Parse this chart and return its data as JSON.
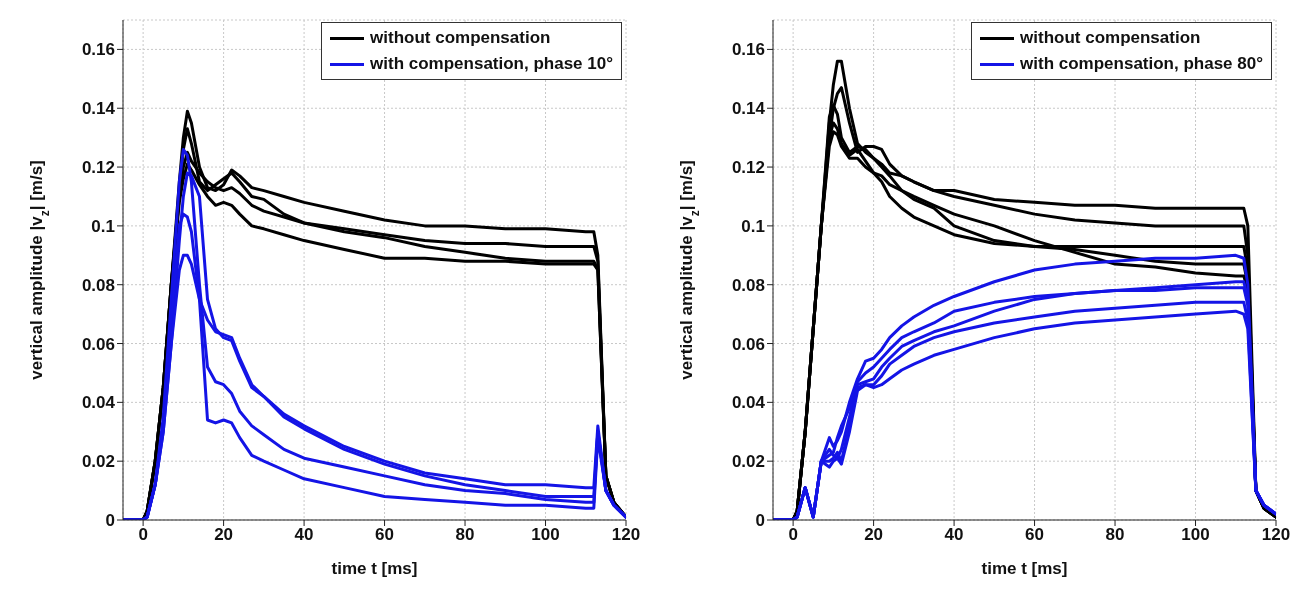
{
  "chart_data": [
    {
      "type": "line",
      "xlabel": "time t [ms]",
      "ylabel": "vertical amplitude |v$_{z}$| [m/s]",
      "xlim": [
        -5,
        120
      ],
      "xticks": [
        0,
        20,
        40,
        60,
        80,
        100,
        120
      ],
      "ylim": [
        0,
        0.17
      ],
      "yticks": [
        0,
        0.02,
        0.04,
        0.06,
        0.08,
        0.1,
        0.12,
        0.14,
        0.16
      ],
      "grid": true,
      "legend": "top right",
      "line_style": "solid",
      "marker": "none",
      "x": [
        -5,
        0,
        1,
        3,
        5,
        7,
        9,
        10,
        11,
        12,
        14,
        16,
        18,
        20,
        22,
        24,
        27,
        30,
        35,
        40,
        50,
        60,
        70,
        80,
        90,
        100,
        110,
        112,
        113,
        115,
        117,
        120
      ],
      "series": [
        {
          "name": "without compensation",
          "color": "#000000",
          "values": [
            0,
            0,
            0.003,
            0.02,
            0.045,
            0.08,
            0.115,
            0.13,
            0.139,
            0.135,
            0.12,
            0.113,
            0.112,
            0.114,
            0.119,
            0.117,
            0.113,
            0.112,
            0.11,
            0.108,
            0.105,
            0.102,
            0.1,
            0.1,
            0.099,
            0.099,
            0.098,
            0.098,
            0.09,
            0.015,
            0.006,
            0.001
          ]
        },
        {
          "color": "#000000",
          "values": [
            0,
            0,
            0.003,
            0.02,
            0.045,
            0.08,
            0.112,
            0.126,
            0.133,
            0.128,
            0.115,
            0.112,
            0.114,
            0.116,
            0.118,
            0.115,
            0.11,
            0.109,
            0.104,
            0.101,
            0.098,
            0.096,
            0.093,
            0.091,
            0.089,
            0.088,
            0.088,
            0.088,
            0.085,
            0.015,
            0.006,
            0.001
          ]
        },
        {
          "color": "#000000",
          "values": [
            0,
            0,
            0.003,
            0.02,
            0.045,
            0.08,
            0.11,
            0.12,
            0.125,
            0.122,
            0.118,
            0.115,
            0.113,
            0.112,
            0.113,
            0.111,
            0.107,
            0.105,
            0.103,
            0.101,
            0.099,
            0.097,
            0.095,
            0.094,
            0.094,
            0.093,
            0.093,
            0.093,
            0.088,
            0.015,
            0.006,
            0.001
          ]
        },
        {
          "color": "#000000",
          "values": [
            0,
            0,
            0.003,
            0.02,
            0.045,
            0.08,
            0.108,
            0.116,
            0.121,
            0.119,
            0.114,
            0.11,
            0.107,
            0.108,
            0.107,
            0.104,
            0.1,
            0.099,
            0.097,
            0.095,
            0.092,
            0.089,
            0.089,
            0.088,
            0.088,
            0.087,
            0.087,
            0.087,
            0.085,
            0.015,
            0.006,
            0.001
          ]
        },
        {
          "name": "with compensation, phase 10°",
          "color": "#1414e6",
          "values": [
            0,
            0,
            0.001,
            0.012,
            0.03,
            0.06,
            0.095,
            0.11,
            0.118,
            0.117,
            0.11,
            0.075,
            0.065,
            0.062,
            0.061,
            0.054,
            0.045,
            0.042,
            0.036,
            0.032,
            0.025,
            0.02,
            0.016,
            0.014,
            0.012,
            0.012,
            0.011,
            0.011,
            0.032,
            0.01,
            0.005,
            0.001
          ]
        },
        {
          "color": "#1414e6",
          "values": [
            0,
            0,
            0.001,
            0.012,
            0.035,
            0.075,
            0.115,
            0.126,
            0.124,
            0.115,
            0.08,
            0.052,
            0.047,
            0.046,
            0.043,
            0.037,
            0.032,
            0.029,
            0.024,
            0.021,
            0.018,
            0.015,
            0.012,
            0.01,
            0.009,
            0.007,
            0.006,
            0.006,
            0.03,
            0.01,
            0.005,
            0.001
          ]
        },
        {
          "color": "#1414e6",
          "values": [
            0,
            0,
            0.001,
            0.012,
            0.032,
            0.068,
            0.1,
            0.104,
            0.103,
            0.098,
            0.075,
            0.034,
            0.033,
            0.034,
            0.033,
            0.028,
            0.022,
            0.02,
            0.017,
            0.014,
            0.011,
            0.008,
            0.007,
            0.006,
            0.005,
            0.005,
            0.004,
            0.004,
            0.028,
            0.01,
            0.005,
            0.001
          ]
        },
        {
          "color": "#1414e6",
          "values": [
            0,
            0,
            0.001,
            0.012,
            0.03,
            0.06,
            0.085,
            0.09,
            0.09,
            0.087,
            0.075,
            0.068,
            0.064,
            0.063,
            0.062,
            0.055,
            0.046,
            0.042,
            0.035,
            0.031,
            0.024,
            0.019,
            0.015,
            0.012,
            0.01,
            0.008,
            0.008,
            0.008,
            0.03,
            0.01,
            0.005,
            0.001
          ]
        }
      ]
    },
    {
      "type": "line",
      "xlabel": "time t [ms]",
      "ylabel": "vertical amplitude |v$_{z}$| [m/s]",
      "xlim": [
        -5,
        120
      ],
      "xticks": [
        0,
        20,
        40,
        60,
        80,
        100,
        120
      ],
      "ylim": [
        0,
        0.17
      ],
      "yticks": [
        0,
        0.02,
        0.04,
        0.06,
        0.08,
        0.1,
        0.12,
        0.14,
        0.16
      ],
      "grid": true,
      "legend": "top right",
      "line_style": "solid",
      "marker": "none",
      "x": [
        -5,
        0,
        1,
        3,
        5,
        7,
        9,
        10,
        11,
        12,
        14,
        16,
        18,
        20,
        22,
        24,
        27,
        30,
        35,
        40,
        50,
        60,
        70,
        80,
        90,
        100,
        110,
        112,
        113,
        115,
        117,
        120
      ],
      "series": [
        {
          "name": "without compensation",
          "color": "#000000",
          "values": [
            0,
            0,
            0.003,
            0.03,
            0.065,
            0.1,
            0.135,
            0.148,
            0.156,
            0.156,
            0.14,
            0.128,
            0.125,
            0.123,
            0.12,
            0.117,
            0.112,
            0.109,
            0.106,
            0.1,
            0.095,
            0.093,
            0.092,
            0.09,
            0.088,
            0.087,
            0.087,
            0.087,
            0.08,
            0.01,
            0.004,
            0.001
          ]
        },
        {
          "color": "#000000",
          "values": [
            0,
            0,
            0.003,
            0.03,
            0.065,
            0.1,
            0.13,
            0.14,
            0.145,
            0.147,
            0.135,
            0.125,
            0.127,
            0.127,
            0.126,
            0.121,
            0.117,
            0.115,
            0.112,
            0.11,
            0.107,
            0.104,
            0.102,
            0.101,
            0.1,
            0.1,
            0.1,
            0.1,
            0.09,
            0.01,
            0.004,
            0.001
          ]
        },
        {
          "color": "#000000",
          "values": [
            0,
            0,
            0.003,
            0.03,
            0.065,
            0.1,
            0.137,
            0.141,
            0.138,
            0.13,
            0.125,
            0.127,
            0.126,
            0.123,
            0.121,
            0.118,
            0.117,
            0.115,
            0.112,
            0.112,
            0.109,
            0.108,
            0.107,
            0.107,
            0.106,
            0.106,
            0.106,
            0.106,
            0.1,
            0.01,
            0.004,
            0.001
          ]
        },
        {
          "color": "#000000",
          "values": [
            0,
            0,
            0.003,
            0.03,
            0.065,
            0.1,
            0.13,
            0.135,
            0.133,
            0.128,
            0.124,
            0.126,
            0.122,
            0.118,
            0.115,
            0.11,
            0.106,
            0.103,
            0.1,
            0.097,
            0.094,
            0.093,
            0.093,
            0.093,
            0.093,
            0.093,
            0.093,
            0.093,
            0.085,
            0.01,
            0.004,
            0.001
          ]
        },
        {
          "color": "#000000",
          "values": [
            0,
            0,
            0.003,
            0.03,
            0.065,
            0.1,
            0.127,
            0.132,
            0.131,
            0.127,
            0.123,
            0.123,
            0.12,
            0.118,
            0.117,
            0.114,
            0.112,
            0.11,
            0.107,
            0.104,
            0.1,
            0.095,
            0.091,
            0.087,
            0.086,
            0.084,
            0.083,
            0.083,
            0.078,
            0.01,
            0.004,
            0.001
          ]
        },
        {
          "name": "with compensation, phase 80°",
          "color": "#1414e6",
          "values": [
            0,
            0,
            0.001,
            0.011,
            0.001,
            0.02,
            0.028,
            0.025,
            0.027,
            0.03,
            0.04,
            0.048,
            0.054,
            0.055,
            0.058,
            0.062,
            0.066,
            0.069,
            0.073,
            0.076,
            0.081,
            0.085,
            0.087,
            0.088,
            0.089,
            0.089,
            0.09,
            0.089,
            0.08,
            0.01,
            0.005,
            0.002
          ]
        },
        {
          "color": "#1414e6",
          "values": [
            0,
            0,
            0.001,
            0.011,
            0.001,
            0.02,
            0.022,
            0.023,
            0.028,
            0.032,
            0.038,
            0.047,
            0.05,
            0.052,
            0.055,
            0.058,
            0.062,
            0.064,
            0.067,
            0.071,
            0.074,
            0.076,
            0.077,
            0.078,
            0.079,
            0.08,
            0.081,
            0.081,
            0.075,
            0.01,
            0.005,
            0.002
          ]
        },
        {
          "color": "#1414e6",
          "values": [
            0,
            0,
            0.001,
            0.011,
            0.001,
            0.02,
            0.024,
            0.022,
            0.021,
            0.024,
            0.035,
            0.046,
            0.047,
            0.048,
            0.052,
            0.055,
            0.059,
            0.061,
            0.064,
            0.066,
            0.071,
            0.075,
            0.077,
            0.078,
            0.078,
            0.079,
            0.079,
            0.079,
            0.073,
            0.01,
            0.005,
            0.002
          ]
        },
        {
          "color": "#1414e6",
          "values": [
            0,
            0,
            0.001,
            0.011,
            0.001,
            0.02,
            0.02,
            0.021,
            0.023,
            0.02,
            0.032,
            0.045,
            0.046,
            0.046,
            0.049,
            0.053,
            0.056,
            0.059,
            0.062,
            0.064,
            0.067,
            0.069,
            0.071,
            0.072,
            0.073,
            0.074,
            0.074,
            0.074,
            0.068,
            0.01,
            0.005,
            0.002
          ]
        },
        {
          "color": "#1414e6",
          "values": [
            0,
            0,
            0.001,
            0.011,
            0.001,
            0.02,
            0.018,
            0.02,
            0.021,
            0.019,
            0.03,
            0.044,
            0.046,
            0.045,
            0.046,
            0.048,
            0.051,
            0.053,
            0.056,
            0.058,
            0.062,
            0.065,
            0.067,
            0.068,
            0.069,
            0.07,
            0.071,
            0.07,
            0.065,
            0.01,
            0.005,
            0.002
          ]
        }
      ]
    }
  ]
}
